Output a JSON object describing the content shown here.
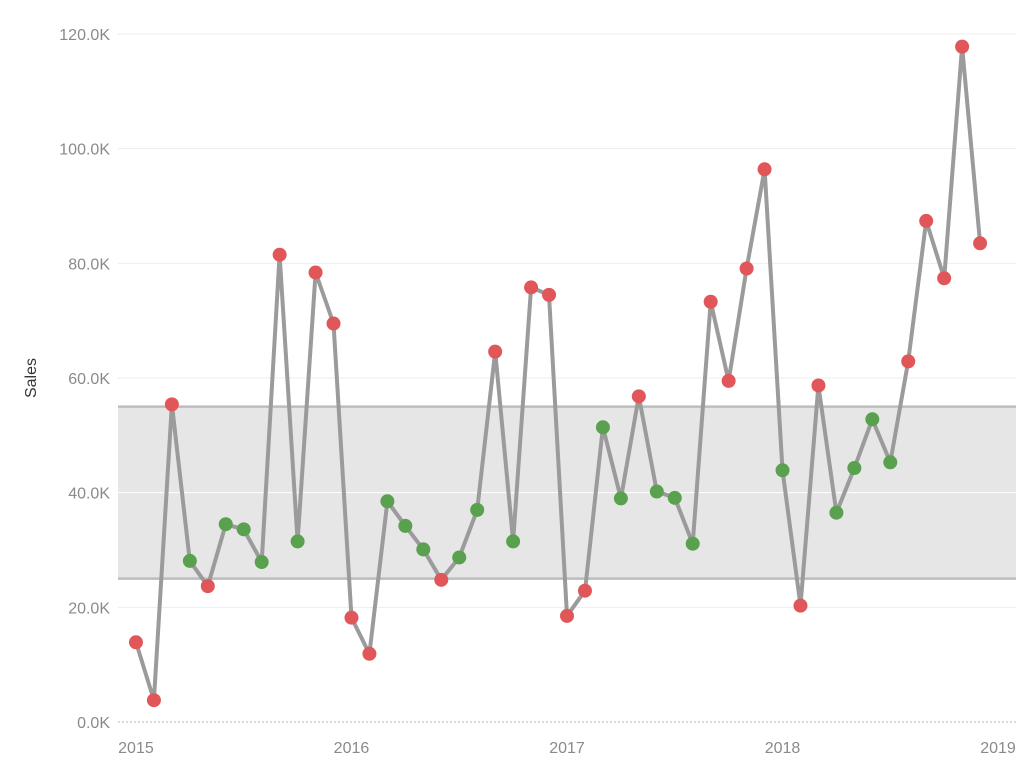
{
  "chart_data": {
    "type": "line",
    "ylabel": "Sales",
    "xlabel": "",
    "title": "",
    "ylim": [
      0,
      120000
    ],
    "y_ticks": [
      {
        "value": 0,
        "label": "0.0K"
      },
      {
        "value": 20000,
        "label": "20.0K"
      },
      {
        "value": 40000,
        "label": "40.0K"
      },
      {
        "value": 60000,
        "label": "60.0K"
      },
      {
        "value": 80000,
        "label": "80.0K"
      },
      {
        "value": 100000,
        "label": "100.0K"
      },
      {
        "value": 120000,
        "label": "120.0K"
      }
    ],
    "x_ticks": [
      {
        "value": "2015-01",
        "label": "2015"
      },
      {
        "value": "2016-01",
        "label": "2016"
      },
      {
        "value": "2017-01",
        "label": "2017"
      },
      {
        "value": "2018-01",
        "label": "2018"
      },
      {
        "value": "2019-01",
        "label": "2019"
      }
    ],
    "x_range": [
      "2014-12",
      "2019-02"
    ],
    "reference_band": {
      "from": 25000,
      "to": 55000
    },
    "grid": true,
    "colors": {
      "line": "#9b9b9b",
      "inside_band": "#59a14f",
      "outside_band": "#e15759",
      "band_fill": "#e6e6e6",
      "band_edge": "#bdbdbd",
      "gridline": "#eeeeee"
    },
    "series": [
      {
        "x": [
          "2015-01",
          "2015-02",
          "2015-03",
          "2015-04",
          "2015-05",
          "2015-06",
          "2015-07",
          "2015-08",
          "2015-09",
          "2015-10",
          "2015-11",
          "2015-12",
          "2016-01",
          "2016-02",
          "2016-03",
          "2016-04",
          "2016-05",
          "2016-06",
          "2016-07",
          "2016-08",
          "2016-09",
          "2016-10",
          "2016-11",
          "2016-12",
          "2017-01",
          "2017-02",
          "2017-03",
          "2017-04",
          "2017-05",
          "2017-06",
          "2017-07",
          "2017-08",
          "2017-09",
          "2017-10",
          "2017-11",
          "2017-12",
          "2018-01",
          "2018-02",
          "2018-03",
          "2018-04",
          "2018-05",
          "2018-06",
          "2018-07",
          "2018-08",
          "2018-09",
          "2018-10",
          "2018-11",
          "2018-12"
        ],
        "values": [
          13900,
          3800,
          55400,
          28100,
          23700,
          34500,
          33600,
          27900,
          81500,
          31500,
          78400,
          69500,
          18200,
          11900,
          38500,
          34200,
          30100,
          24800,
          28700,
          37000,
          64600,
          31500,
          75800,
          74500,
          18500,
          22900,
          51400,
          39000,
          56800,
          40200,
          39100,
          31100,
          73300,
          59500,
          79100,
          96400,
          43900,
          20300,
          58700,
          36500,
          44300,
          52800,
          45300,
          62900,
          87400,
          77400,
          117800,
          83500
        ]
      }
    ]
  }
}
